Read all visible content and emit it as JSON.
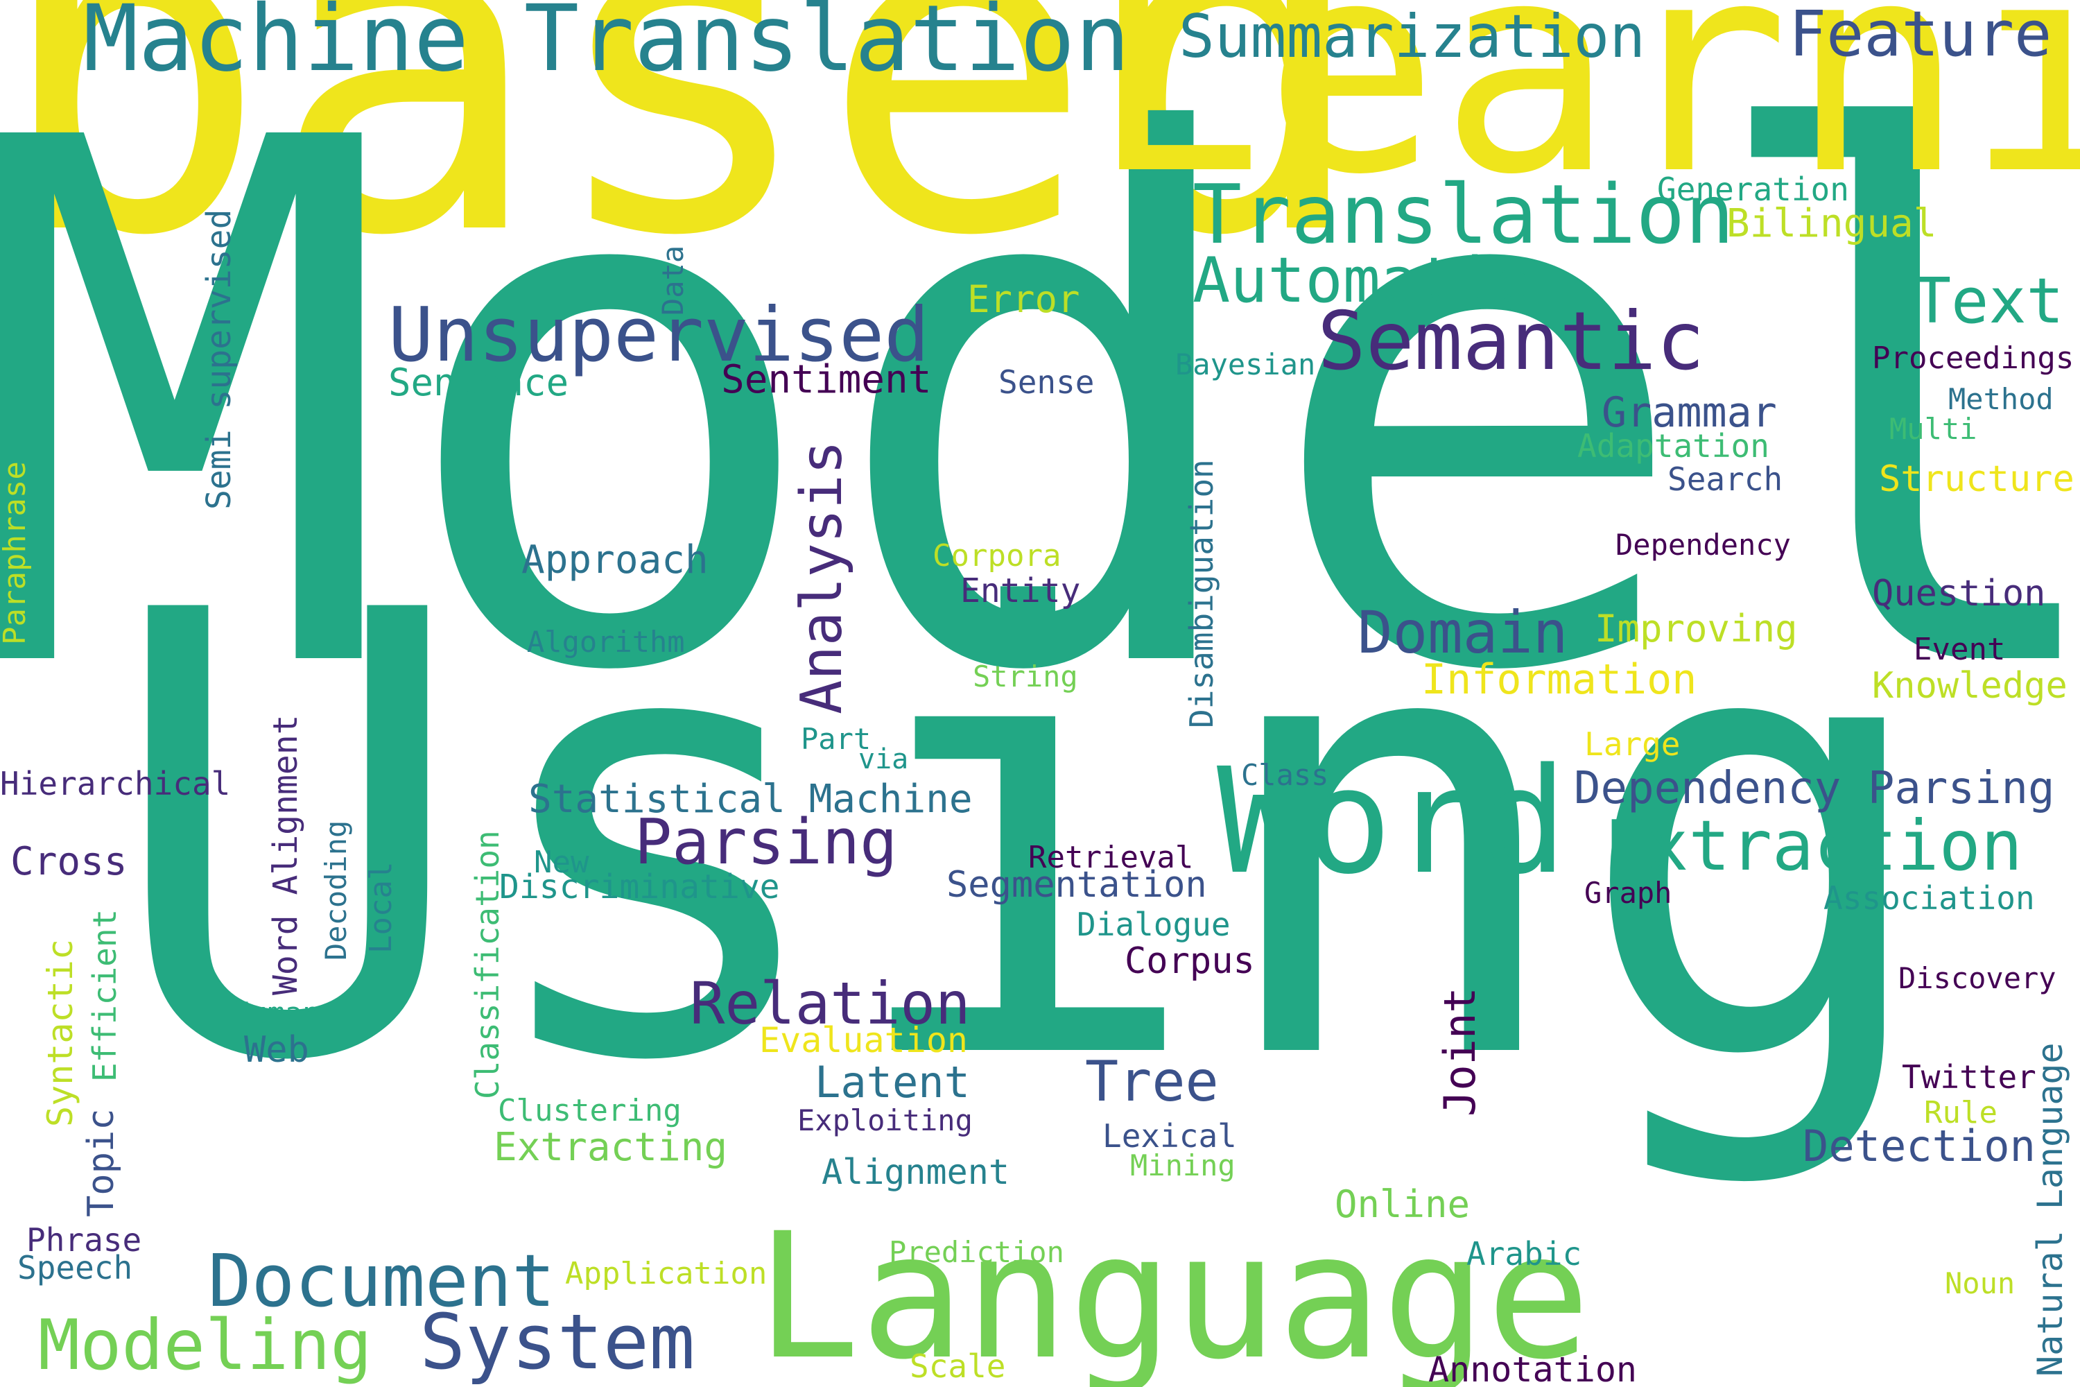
{
  "words": {
    "model": "Model",
    "using": "Using",
    "based": "based",
    "learning": "Learning",
    "language": "Language",
    "word": "Word",
    "machine_translation": "Machine Translation",
    "summarization": "Summarization",
    "feature": "Feature",
    "translation": "Translation",
    "automatic": "Automatic",
    "unsupervised": "Unsupervised",
    "semantic": "Semantic",
    "text": "Text",
    "generation": "Generation",
    "bilingual": "Bilingual",
    "error": "Error",
    "data": "Data",
    "semi_supervised": "Semi supervised",
    "sentence": "Sentence",
    "sentiment": "Sentiment",
    "sense": "Sense",
    "bayesian": "Bayesian",
    "proceedings": "Proceedings",
    "method": "Method",
    "multi": "Multi",
    "grammar": "Grammar",
    "adaptation": "Adaptation",
    "search": "Search",
    "structure": "Structure",
    "paraphrase": "Paraphrase",
    "analysis": "Analysis",
    "approach": "Approach",
    "corpora": "Corpora",
    "entity": "Entity",
    "disambiguation": "Disambiguation",
    "dependency": "Dependency",
    "question": "Question",
    "algorithm": "Algorithm",
    "domain": "Domain",
    "improving": "Improving",
    "event": "Event",
    "information": "Information",
    "knowledge": "Knowledge",
    "string": "String",
    "part": "Part",
    "via": "via",
    "large": "Large",
    "hierarchical": "Hierarchical",
    "class": "Class",
    "word_alignment": "Word Alignment",
    "statistical_machine": "Statistical Machine",
    "dependency_parsing": "Dependency Parsing",
    "cross": "Cross",
    "decoding": "Decoding",
    "parsing": "Parsing",
    "extraction": "Extraction",
    "new": "New",
    "retrieval": "Retrieval",
    "local": "Local",
    "classification": "Classification",
    "discriminative": "Discriminative",
    "segmentation": "Segmentation",
    "graph": "Graph",
    "association": "Association",
    "dialogue": "Dialogue",
    "syntactic": "Syntactic",
    "efficient": "Efficient",
    "corpus": "Corpus",
    "relation": "Relation",
    "discovery": "Discovery",
    "human": "Human",
    "evaluation": "Evaluation",
    "web": "Web",
    "latent": "Latent",
    "tree": "Tree",
    "joint": "Joint",
    "natural_language": "Natural Language",
    "twitter": "Twitter",
    "rule": "Rule",
    "clustering": "Clustering",
    "exploiting": "Exploiting",
    "topic": "Topic",
    "extracting": "Extracting",
    "lexical": "Lexical",
    "detection": "Detection",
    "mining": "Mining",
    "alignment": "Alignment",
    "online": "Online",
    "phrase": "Phrase",
    "speech": "Speech",
    "document": "Document",
    "prediction": "Prediction",
    "arabic": "Arabic",
    "application": "Application",
    "noun": "Noun",
    "modeling": "Modeling",
    "system": "System",
    "scale": "Scale",
    "annotation": "Annotation"
  }
}
